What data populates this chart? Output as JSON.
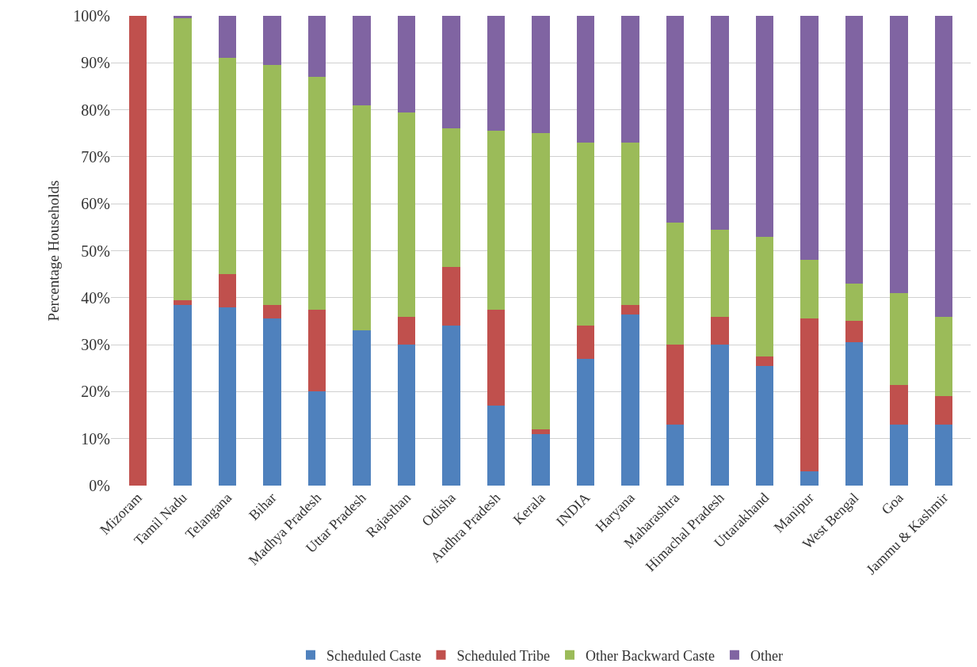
{
  "chart_data": {
    "type": "bar",
    "stacked": true,
    "ylabel": "Percentage Households",
    "categories": [
      "Mizoram",
      "Tamil Nadu",
      "Telangana",
      "Bihar",
      "Madhya Pradesh",
      "Uttar Pradesh",
      "Rajasthan",
      "Odisha",
      "Andhra Pradesh",
      "Kerala",
      "INDIA",
      "Haryana",
      "Maharashtra",
      "Himachal Pradesh",
      "Uttarakhand",
      "Manipur",
      "West Bengal",
      "Goa",
      "Jammu & Kashmir"
    ],
    "series": [
      {
        "name": "Scheduled Caste",
        "color": "#4f81bd",
        "values": [
          0,
          38.5,
          38,
          35.5,
          20,
          33,
          30,
          34,
          17,
          11,
          27,
          36.5,
          13,
          30,
          25.5,
          3,
          30.5,
          13,
          13
        ]
      },
      {
        "name": "Scheduled Tribe",
        "color": "#c0504d",
        "values": [
          100,
          1,
          7,
          3,
          17.5,
          0,
          6,
          12.5,
          20.5,
          1,
          7,
          2,
          17,
          6,
          2,
          32.5,
          4.5,
          8.5,
          6
        ]
      },
      {
        "name": "Other Backward Caste",
        "color": "#9bbb59",
        "values": [
          0,
          60,
          46,
          51,
          49.5,
          48,
          43.5,
          29.5,
          38,
          63,
          39,
          34.5,
          26,
          18.5,
          25.5,
          12.5,
          8,
          19.5,
          17
        ]
      },
      {
        "name": "Other",
        "color": "#8064a2",
        "values": [
          0,
          0.5,
          9,
          10.5,
          13,
          19,
          20.5,
          24,
          24.5,
          25,
          27,
          27,
          44,
          45.5,
          47,
          52,
          57,
          59,
          64
        ]
      }
    ],
    "ylim": [
      0,
      100
    ],
    "yticks": [
      {
        "value": 0,
        "label": "0%"
      },
      {
        "value": 10,
        "label": "10%"
      },
      {
        "value": 20,
        "label": "20%"
      },
      {
        "value": 30,
        "label": "30%"
      },
      {
        "value": 40,
        "label": "40%"
      },
      {
        "value": 50,
        "label": "50%"
      },
      {
        "value": 60,
        "label": "60%"
      },
      {
        "value": 70,
        "label": "70%"
      },
      {
        "value": 80,
        "label": "80%"
      },
      {
        "value": 90,
        "label": "90%"
      },
      {
        "value": 100,
        "label": "100%"
      }
    ],
    "grid": "y",
    "legend": "bottom"
  }
}
